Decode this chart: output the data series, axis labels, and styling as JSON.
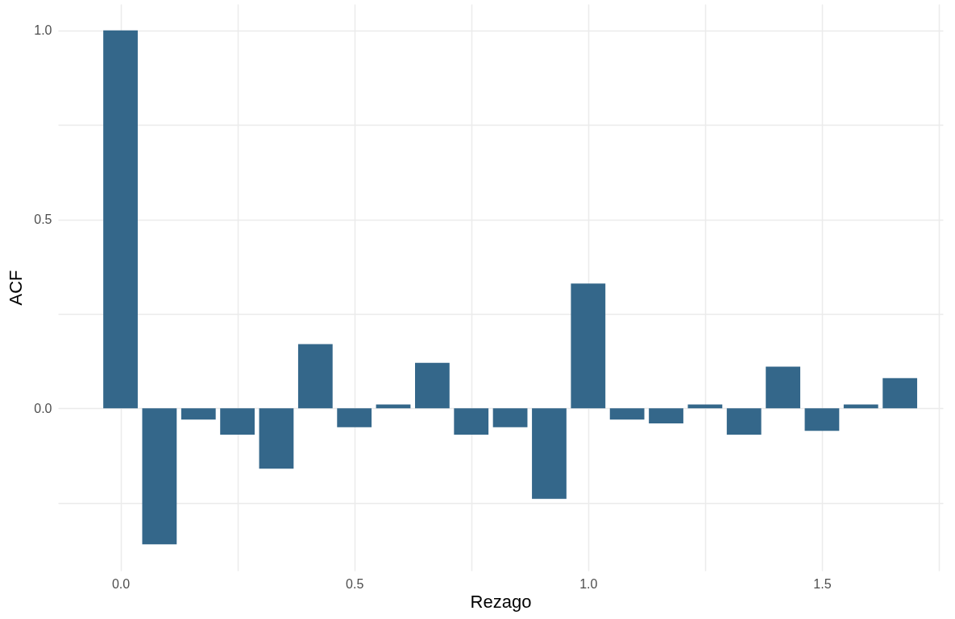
{
  "chart_data": {
    "type": "bar",
    "xlabel": "Rezago",
    "ylabel": "ACF",
    "color": "#34678a",
    "x": [
      0,
      0.0833,
      0.1667,
      0.25,
      0.3333,
      0.4167,
      0.5,
      0.5833,
      0.6667,
      0.75,
      0.8333,
      0.9167,
      1,
      1.0833,
      1.1667,
      1.25,
      1.3333,
      1.4167,
      1.5,
      1.5833,
      1.6667
    ],
    "values": [
      1.0,
      -0.36,
      -0.03,
      -0.07,
      -0.16,
      0.17,
      -0.05,
      0.01,
      0.12,
      -0.07,
      -0.05,
      -0.24,
      0.33,
      -0.03,
      -0.04,
      0.01,
      -0.07,
      0.11,
      -0.06,
      0.01,
      0.08
    ],
    "xlim": [
      -0.125,
      1.75
    ],
    "ylim": [
      -0.43,
      1.07
    ],
    "xticks": [
      {
        "value": 0,
        "label": "0.0"
      },
      {
        "value": 0.25,
        "label": null
      },
      {
        "value": 0.5,
        "label": "0.5"
      },
      {
        "value": 0.75,
        "label": null
      },
      {
        "value": 1,
        "label": "1.0"
      },
      {
        "value": 1.25,
        "label": null
      },
      {
        "value": 1.5,
        "label": "1.5"
      },
      {
        "value": 1.75,
        "label": null
      }
    ],
    "yticks": [
      {
        "value": -0.25,
        "label": null
      },
      {
        "value": 0,
        "label": "0.0"
      },
      {
        "value": 0.25,
        "label": null
      },
      {
        "value": 0.5,
        "label": "0.5"
      },
      {
        "value": 0.75,
        "label": null
      },
      {
        "value": 1,
        "label": "1.0"
      }
    ],
    "grid": true
  }
}
